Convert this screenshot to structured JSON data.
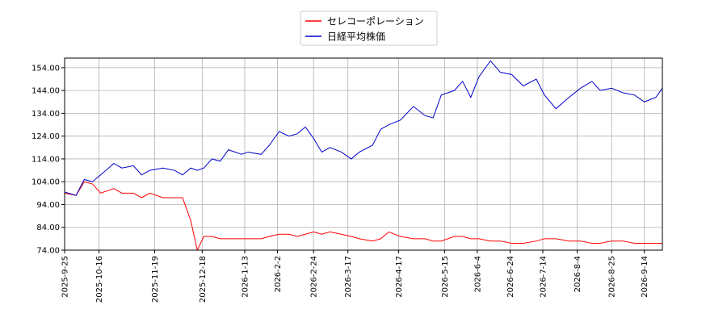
{
  "chart_data": {
    "type": "line",
    "x": [
      "2025-9-25",
      "2025-10-2",
      "2025-10-7",
      "2025-10-12",
      "2025-10-17",
      "2025-10-25",
      "2025-10-30",
      "2025-11-6",
      "2025-11-11",
      "2025-11-16",
      "2025-11-24",
      "2025-12-1",
      "2025-12-6",
      "2025-12-11",
      "2025-12-15",
      "2025-12-19",
      "2025-12-24",
      "2025-12-29",
      "2026-1-3",
      "2026-1-11",
      "2026-1-15",
      "2026-1-23",
      "2026-1-28",
      "2026-2-3",
      "2026-2-9",
      "2026-2-14",
      "2026-2-19",
      "2026-2-24",
      "2026-3-1",
      "2026-3-6",
      "2026-3-13",
      "2026-3-19",
      "2026-3-24",
      "2026-4-1",
      "2026-4-6",
      "2026-4-11",
      "2026-4-18",
      "2026-4-26",
      "2026-5-3",
      "2026-5-8",
      "2026-5-13",
      "2026-5-21",
      "2026-5-26",
      "2026-5-31",
      "2026-6-5",
      "2026-6-12",
      "2026-6-18",
      "2026-6-25",
      "2026-7-2",
      "2026-7-10",
      "2026-7-15",
      "2026-7-22",
      "2026-7-30",
      "2026-8-6",
      "2026-8-13",
      "2026-8-18",
      "2026-8-25",
      "2026-9-1",
      "2026-9-8",
      "2026-9-14",
      "2026-9-21",
      "2026-9-25"
    ],
    "series": [
      {
        "name": "セレコーポレーション",
        "color": "#ff0000",
        "values": [
          99,
          98,
          104,
          103,
          99,
          101,
          99,
          99,
          97,
          99,
          97,
          97,
          97,
          87,
          74,
          80,
          80,
          79,
          79,
          79,
          79,
          79,
          80,
          81,
          81,
          80,
          81,
          82,
          81,
          82,
          81,
          80,
          79,
          78,
          79,
          82,
          80,
          79,
          79,
          78,
          78,
          80,
          80,
          79,
          79,
          78,
          78,
          77,
          77,
          78,
          79,
          79,
          78,
          78,
          77,
          77,
          78,
          78,
          77,
          77,
          77,
          77
        ]
      },
      {
        "name": "日経平均株価",
        "color": "#0000cc",
        "values": [
          99.5,
          98,
          105,
          104,
          107,
          112,
          110,
          111,
          107,
          109,
          110,
          109,
          107,
          110,
          109,
          110,
          114,
          113,
          118,
          116,
          117,
          116,
          120,
          126,
          124,
          125,
          128,
          123,
          117,
          119,
          117,
          114,
          117,
          120,
          127,
          129,
          131,
          137,
          133,
          132,
          142,
          144,
          148,
          141,
          150,
          157,
          152,
          151,
          146,
          149,
          142,
          136,
          141,
          145,
          148,
          144,
          145,
          143,
          142,
          139,
          141,
          145
        ]
      }
    ],
    "xlim": [
      "2025-9-25",
      "2026-9-25"
    ],
    "xticks": [
      "2025-9-25",
      "2025-10-16",
      "2025-11-19",
      "2025-12-18",
      "2026-1-13",
      "2026-2-2",
      "2026-2-24",
      "2026-3-17",
      "2026-4-17",
      "2026-5-15",
      "2026-6-4",
      "2026-6-24",
      "2026-7-14",
      "2026-8-4",
      "2026-8-25",
      "2026-9-14"
    ],
    "ylim": [
      74,
      158.2
    ],
    "yticks": [
      {
        "value": 74,
        "label": "74.00"
      },
      {
        "value": 84,
        "label": "84.00"
      },
      {
        "value": 94,
        "label": "94.00"
      },
      {
        "value": 104,
        "label": "104.00"
      },
      {
        "value": 114,
        "label": "114.00"
      },
      {
        "value": 124,
        "label": "124.00"
      },
      {
        "value": 134,
        "label": "134.00"
      },
      {
        "value": 144,
        "label": "144.00"
      },
      {
        "value": 154,
        "label": "154.00"
      }
    ],
    "grid": true
  }
}
